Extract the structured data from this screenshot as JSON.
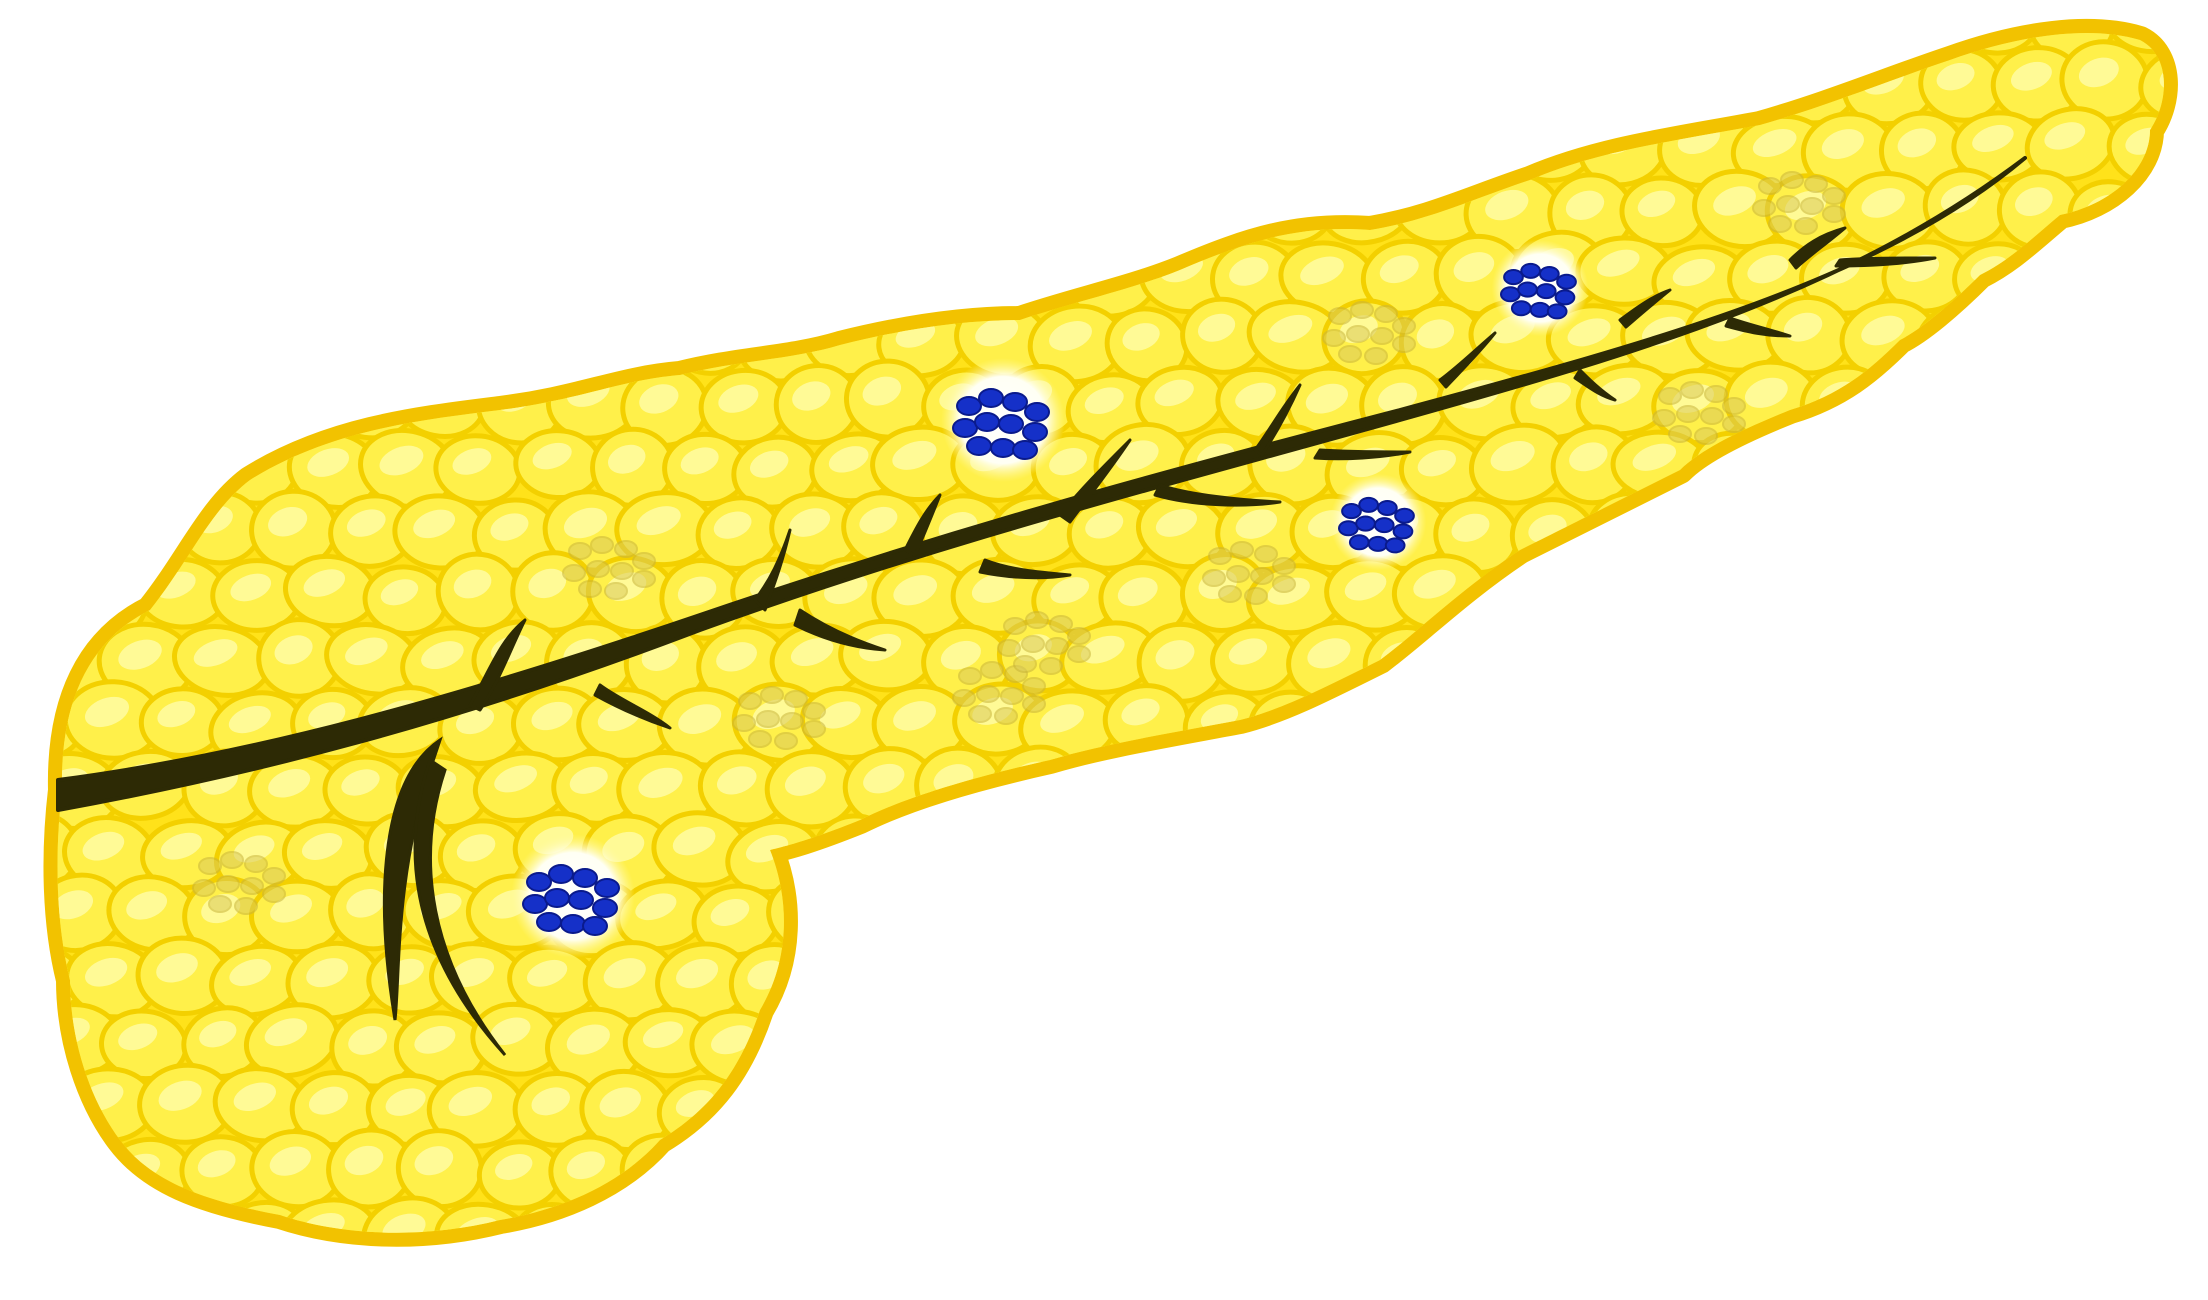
{
  "figure": {
    "subject": "pancreas-illustration",
    "labels": []
  },
  "colors": {
    "background": "#ffffff",
    "organ_outline": "#F2C200",
    "organ_fill": "#FFE21A",
    "lobule_fill": "#FFF04A",
    "lobule_edge": "#F3D000",
    "lobule_highlight": "#FFFB9E",
    "duct": "#2D2A05",
    "islet_halo": "#FFFFF2",
    "islet_cell": "#1530C8",
    "islet_cell_edge": "#0A1A8C",
    "faded_islet": "#D9C95A"
  },
  "elements": {
    "organ": "pancreas",
    "duct": "pancreatic-duct",
    "active_islet_count": 4,
    "faded_islet_count": 9
  }
}
